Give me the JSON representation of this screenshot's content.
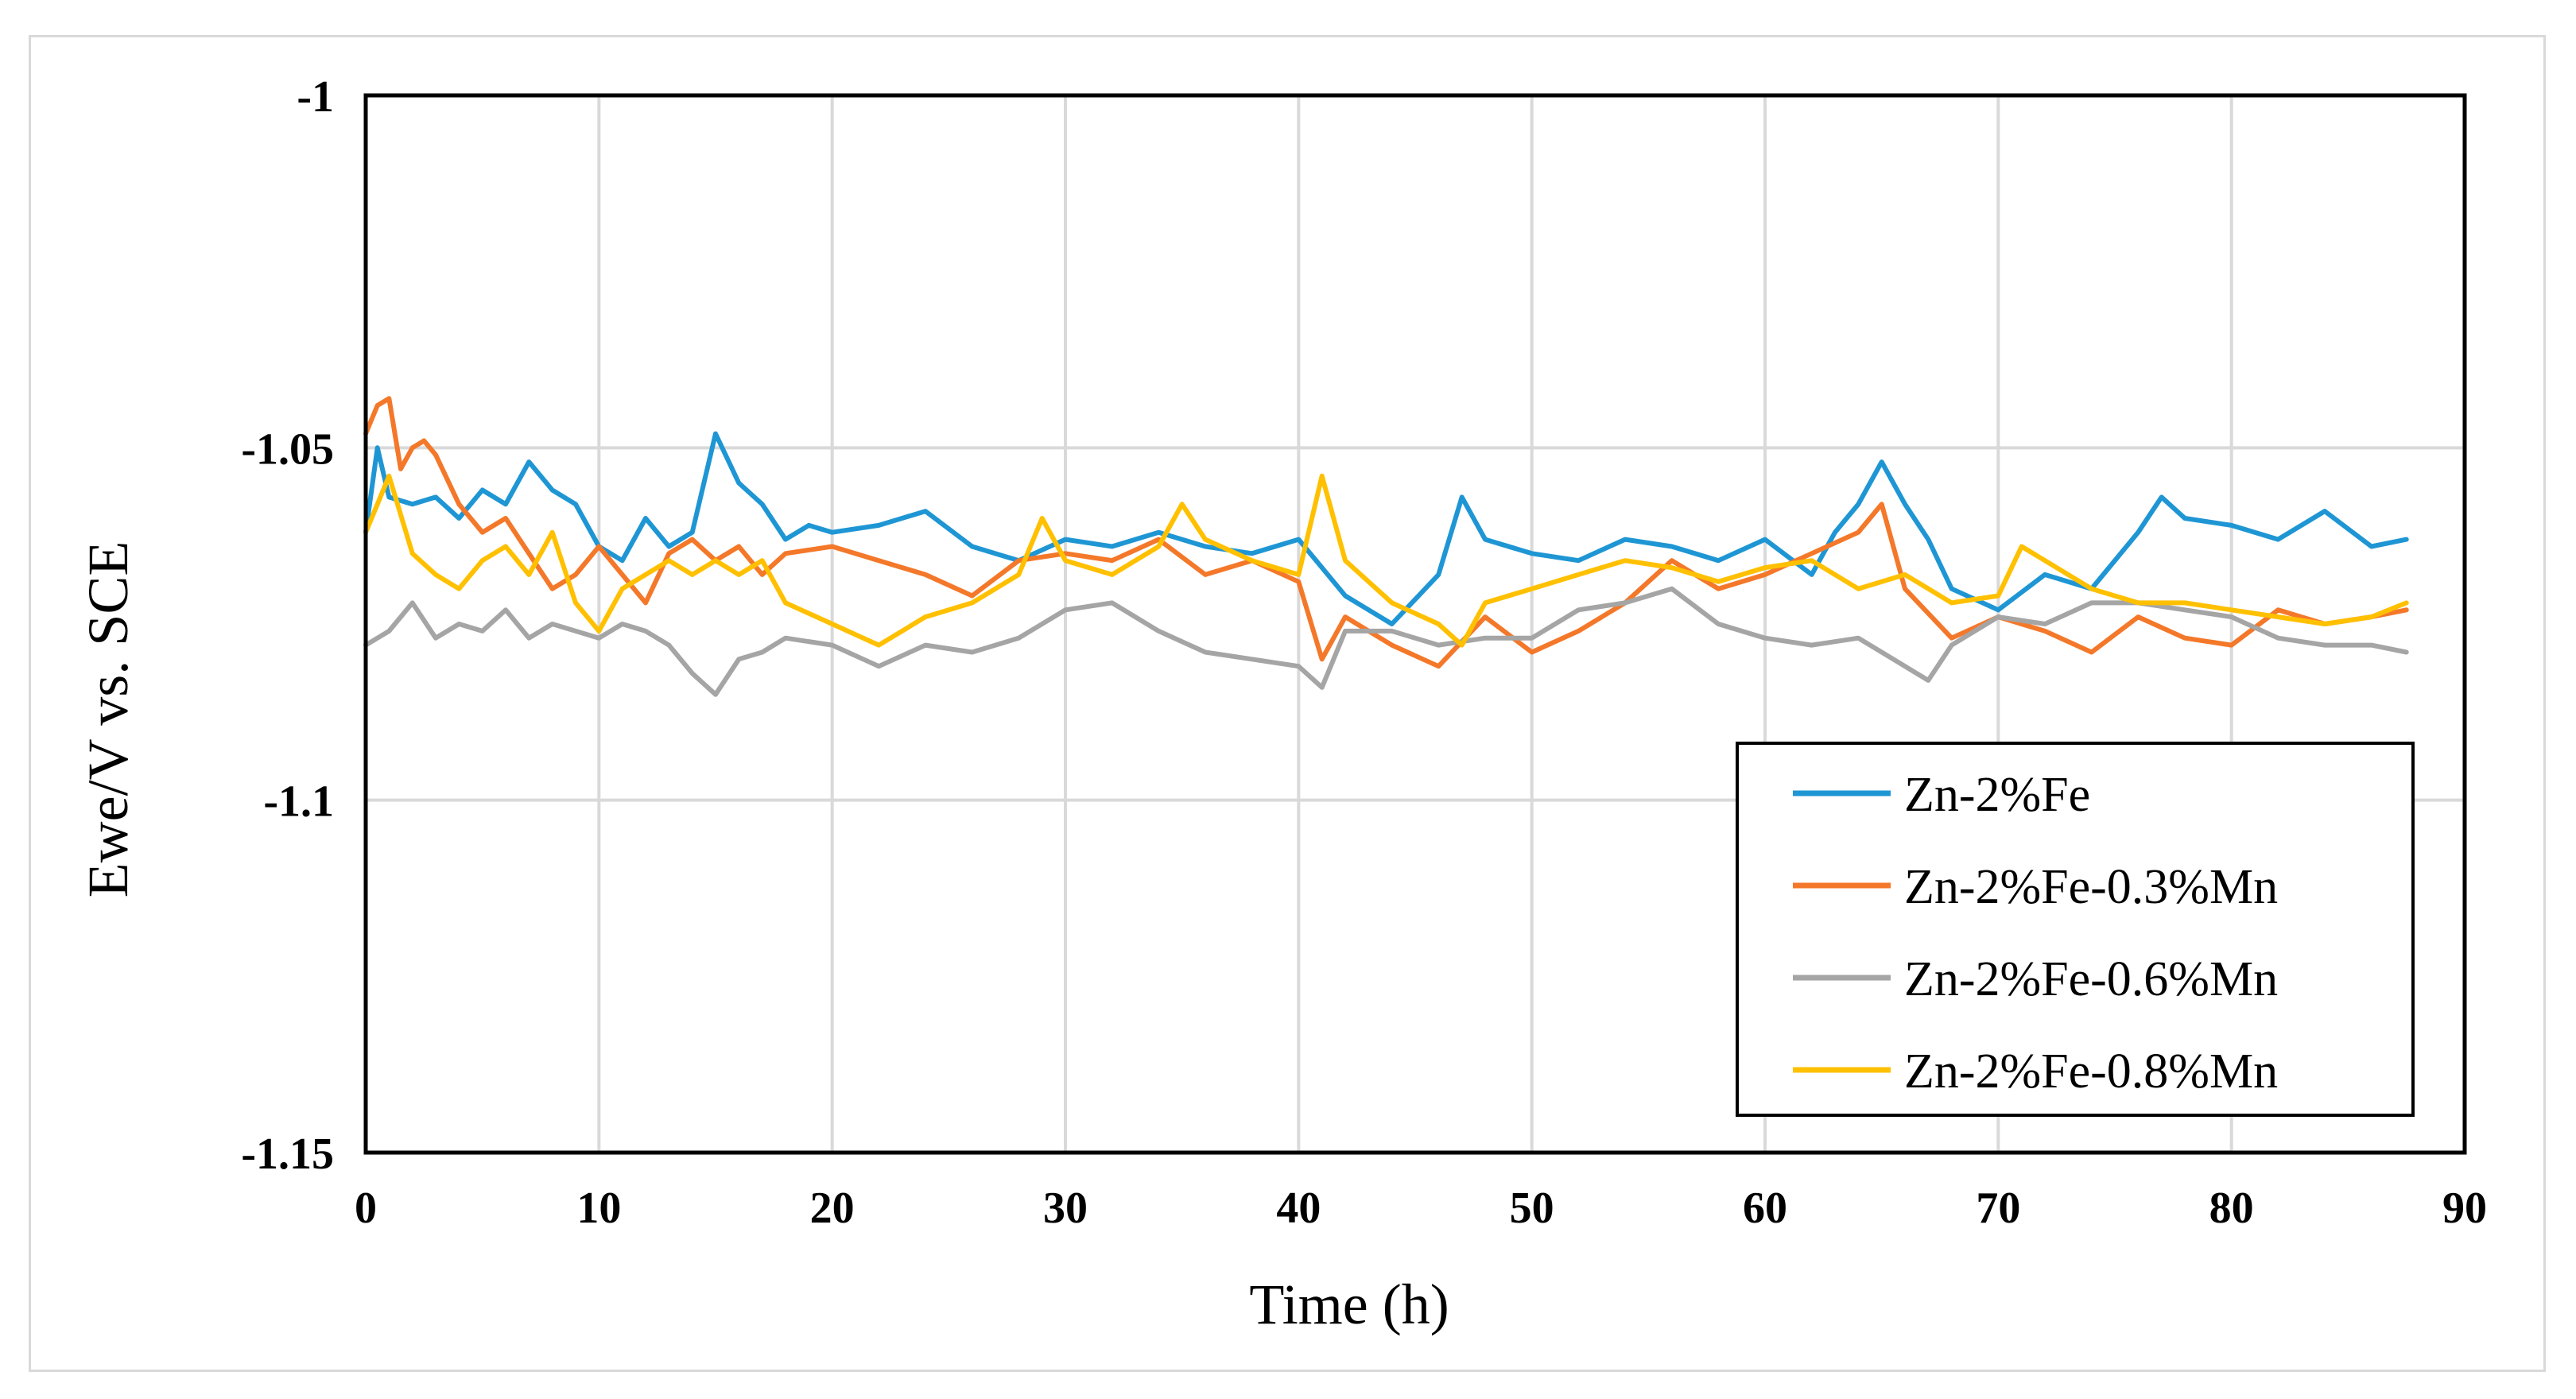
{
  "chart_data": {
    "type": "line",
    "title": "",
    "xlabel": "Time (h)",
    "ylabel": "Ewe/V vs. SCE",
    "xlim": [
      0,
      90
    ],
    "ylim": [
      -1.15,
      -1
    ],
    "xticks": [
      0,
      10,
      20,
      30,
      40,
      50,
      60,
      70,
      80,
      90
    ],
    "yticks": [
      -1,
      -1.05,
      -1.1,
      -1.15
    ],
    "ytick_labels": [
      "-1",
      "-1.05",
      "-1.1",
      "-1.15"
    ],
    "grid": "vertical and horizontal major gridlines",
    "legend_position": "lower-right",
    "series": [
      {
        "name": "Zn-2%Fe",
        "color": "#1f96d4",
        "x": [
          0,
          0.5,
          1,
          2,
          3,
          4,
          5,
          6,
          7,
          8,
          9,
          10,
          11,
          12,
          13,
          14,
          15,
          16,
          17,
          18,
          19,
          20,
          22,
          24,
          26,
          28,
          30,
          32,
          34,
          36,
          38,
          40,
          42,
          44,
          46,
          47,
          48,
          50,
          52,
          54,
          56,
          58,
          60,
          62,
          63,
          64,
          65,
          66,
          67,
          68,
          70,
          72,
          74,
          76,
          77,
          78,
          80,
          82,
          84,
          86,
          87.5
        ],
        "y": [
          -1.062,
          -1.05,
          -1.057,
          -1.058,
          -1.057,
          -1.06,
          -1.056,
          -1.058,
          -1.052,
          -1.056,
          -1.058,
          -1.064,
          -1.066,
          -1.06,
          -1.064,
          -1.062,
          -1.048,
          -1.055,
          -1.058,
          -1.063,
          -1.061,
          -1.062,
          -1.061,
          -1.059,
          -1.064,
          -1.066,
          -1.063,
          -1.064,
          -1.062,
          -1.064,
          -1.065,
          -1.063,
          -1.071,
          -1.075,
          -1.068,
          -1.057,
          -1.063,
          -1.065,
          -1.066,
          -1.063,
          -1.064,
          -1.066,
          -1.063,
          -1.068,
          -1.062,
          -1.058,
          -1.052,
          -1.058,
          -1.063,
          -1.07,
          -1.073,
          -1.068,
          -1.07,
          -1.062,
          -1.057,
          -1.06,
          -1.061,
          -1.063,
          -1.059,
          -1.064,
          -1.063
        ]
      },
      {
        "name": "Zn-2%Fe-0.3%Mn",
        "color": "#f4782a",
        "x": [
          0,
          0.5,
          1,
          1.5,
          2,
          2.5,
          3,
          4,
          5,
          6,
          7,
          8,
          9,
          10,
          11,
          12,
          13,
          14,
          15,
          16,
          17,
          18,
          20,
          22,
          24,
          26,
          28,
          30,
          32,
          34,
          36,
          38,
          40,
          41,
          42,
          44,
          46,
          48,
          50,
          52,
          54,
          56,
          58,
          60,
          62,
          64,
          65,
          66,
          68,
          70,
          72,
          74,
          76,
          78,
          80,
          82,
          84,
          86,
          87.5
        ],
        "y": [
          -1.048,
          -1.044,
          -1.043,
          -1.053,
          -1.05,
          -1.049,
          -1.051,
          -1.058,
          -1.062,
          -1.06,
          -1.065,
          -1.07,
          -1.068,
          -1.064,
          -1.068,
          -1.072,
          -1.065,
          -1.063,
          -1.066,
          -1.064,
          -1.068,
          -1.065,
          -1.064,
          -1.066,
          -1.068,
          -1.071,
          -1.066,
          -1.065,
          -1.066,
          -1.063,
          -1.068,
          -1.066,
          -1.069,
          -1.08,
          -1.074,
          -1.078,
          -1.081,
          -1.074,
          -1.079,
          -1.076,
          -1.072,
          -1.066,
          -1.07,
          -1.068,
          -1.065,
          -1.062,
          -1.058,
          -1.07,
          -1.077,
          -1.074,
          -1.076,
          -1.079,
          -1.074,
          -1.077,
          -1.078,
          -1.073,
          -1.075,
          -1.074,
          -1.073
        ]
      },
      {
        "name": "Zn-2%Fe-0.6%Mn",
        "color": "#a5a5a5",
        "x": [
          0,
          1,
          2,
          3,
          4,
          5,
          6,
          7,
          8,
          9,
          10,
          11,
          12,
          13,
          14,
          15,
          16,
          17,
          18,
          20,
          22,
          24,
          26,
          28,
          30,
          32,
          34,
          36,
          38,
          40,
          41,
          42,
          44,
          46,
          48,
          50,
          52,
          54,
          56,
          58,
          60,
          62,
          64,
          66,
          67,
          68,
          70,
          72,
          74,
          76,
          78,
          80,
          82,
          84,
          86,
          87.5
        ],
        "y": [
          -1.078,
          -1.076,
          -1.072,
          -1.077,
          -1.075,
          -1.076,
          -1.073,
          -1.077,
          -1.075,
          -1.076,
          -1.077,
          -1.075,
          -1.076,
          -1.078,
          -1.082,
          -1.085,
          -1.08,
          -1.079,
          -1.077,
          -1.078,
          -1.081,
          -1.078,
          -1.079,
          -1.077,
          -1.073,
          -1.072,
          -1.076,
          -1.079,
          -1.08,
          -1.081,
          -1.084,
          -1.076,
          -1.076,
          -1.078,
          -1.077,
          -1.077,
          -1.073,
          -1.072,
          -1.07,
          -1.075,
          -1.077,
          -1.078,
          -1.077,
          -1.081,
          -1.083,
          -1.078,
          -1.074,
          -1.075,
          -1.072,
          -1.072,
          -1.073,
          -1.074,
          -1.077,
          -1.078,
          -1.078,
          -1.079
        ]
      },
      {
        "name": "Zn-2%Fe-0.8%Mn",
        "color": "#ffc000",
        "x": [
          0,
          0.5,
          1,
          2,
          3,
          4,
          5,
          6,
          7,
          8,
          9,
          10,
          11,
          12,
          13,
          14,
          15,
          16,
          17,
          18,
          20,
          22,
          24,
          26,
          28,
          29,
          30,
          32,
          34,
          35,
          36,
          38,
          40,
          41,
          42,
          44,
          46,
          47,
          48,
          50,
          52,
          54,
          56,
          58,
          60,
          62,
          64,
          66,
          68,
          70,
          71,
          72,
          74,
          76,
          78,
          80,
          82,
          84,
          86,
          87.5
        ],
        "y": [
          -1.062,
          -1.058,
          -1.054,
          -1.065,
          -1.068,
          -1.07,
          -1.066,
          -1.064,
          -1.068,
          -1.062,
          -1.072,
          -1.076,
          -1.07,
          -1.068,
          -1.066,
          -1.068,
          -1.066,
          -1.068,
          -1.066,
          -1.072,
          -1.075,
          -1.078,
          -1.074,
          -1.072,
          -1.068,
          -1.06,
          -1.066,
          -1.068,
          -1.064,
          -1.058,
          -1.063,
          -1.066,
          -1.068,
          -1.054,
          -1.066,
          -1.072,
          -1.075,
          -1.078,
          -1.072,
          -1.07,
          -1.068,
          -1.066,
          -1.067,
          -1.069,
          -1.067,
          -1.066,
          -1.07,
          -1.068,
          -1.072,
          -1.071,
          -1.064,
          -1.066,
          -1.07,
          -1.072,
          -1.072,
          -1.073,
          -1.074,
          -1.075,
          -1.074,
          -1.072
        ]
      }
    ]
  }
}
